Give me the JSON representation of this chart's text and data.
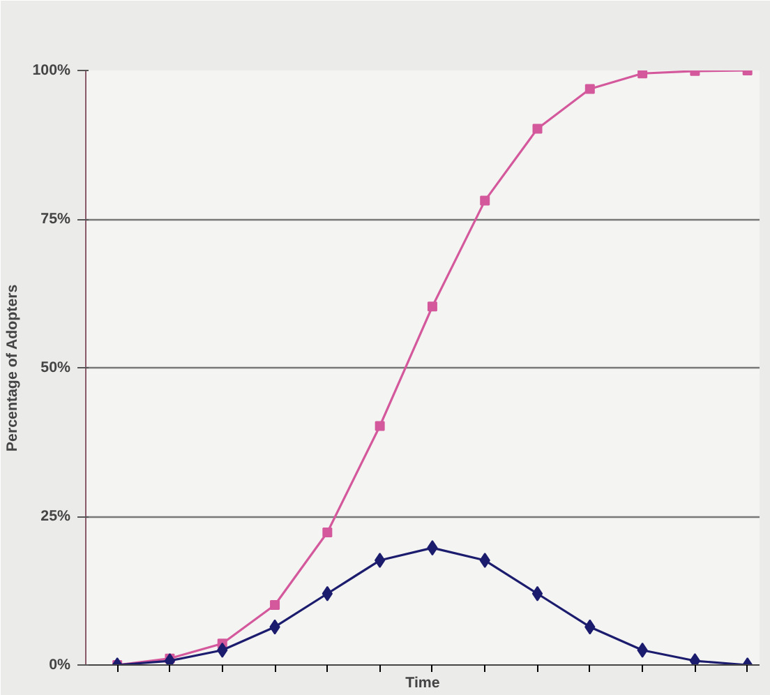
{
  "chart_data": {
    "type": "line",
    "xlabel": "Time",
    "ylabel": "Percentage of Adopters",
    "categories": [
      null,
      null,
      null,
      null,
      null,
      null,
      null,
      null,
      null,
      null,
      null,
      null,
      null
    ],
    "series": [
      {
        "color": "#1c1c6e",
        "marker": "diamond",
        "values": [
          0,
          0.7,
          2.5,
          6.4,
          12,
          17.6,
          19.7,
          17.6,
          12,
          6.4,
          2.5,
          0.7,
          0
        ]
      },
      {
        "color": "#d4589c",
        "marker": "square",
        "values": [
          0,
          1.1,
          3.6,
          10.1,
          22.3,
          40.2,
          60.3,
          78.1,
          90.2,
          96.9,
          99.5,
          99.9,
          100
        ]
      }
    ],
    "ylim": [
      0,
      100
    ],
    "yticks": [
      {
        "value": 0,
        "label": "0%"
      },
      {
        "value": 25,
        "label": "25%"
      },
      {
        "value": 50,
        "label": "50%"
      },
      {
        "value": 75,
        "label": "75%"
      },
      {
        "value": 100,
        "label": "100%"
      }
    ],
    "grid": "y",
    "tick_labels": "y",
    "line_style": "solid"
  }
}
